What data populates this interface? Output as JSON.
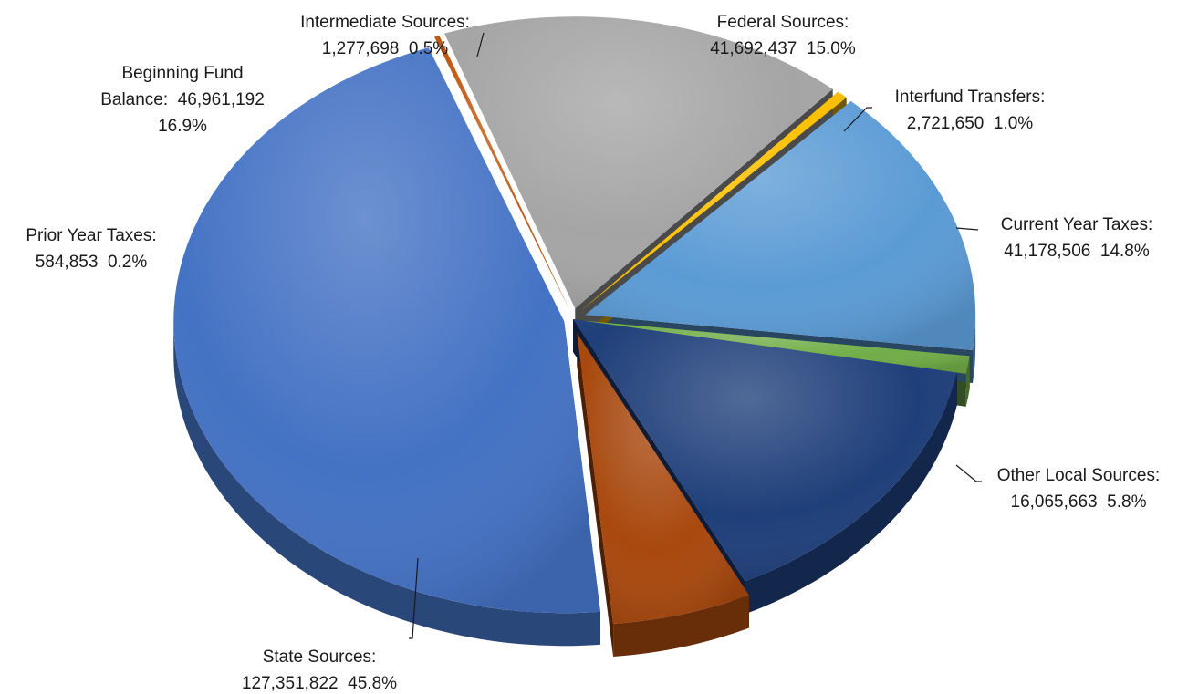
{
  "chart_data": {
    "type": "pie",
    "title": "",
    "legend": "none",
    "units": "dollars",
    "slices": [
      {
        "name": "Current Year Taxes:",
        "value": 41178506,
        "percent": "14.8%",
        "value_label": "41,178,506",
        "color": "#1f3f7a"
      },
      {
        "name": "Other Local Sources:",
        "value": 16065663,
        "percent": "5.8%",
        "value_label": "16,065,663",
        "color": "#a8480e"
      },
      {
        "name": "State Sources:",
        "value": 127351822,
        "percent": "45.8%",
        "value_label": "127,351,822",
        "color": "#4472c4"
      },
      {
        "name": "Prior Year Taxes:",
        "value": 584853,
        "percent": "0.2%",
        "value_label": "584,853",
        "color": "#c0560f"
      },
      {
        "name": "Beginning Fund Balance:",
        "value": 46961192,
        "percent": "16.9%",
        "value_label": "46,961,192",
        "color": "#a5a5a5"
      },
      {
        "name": "Intermediate Sources:",
        "value": 1277698,
        "percent": "0.5%",
        "value_label": "1,277,698",
        "color": "#ffc000"
      },
      {
        "name": "Federal Sources:",
        "value": 41692437,
        "percent": "15.0%",
        "value_label": "41,692,437",
        "color": "#5b9bd5"
      },
      {
        "name": "Interfund Transfers:",
        "value": 2721650,
        "percent": "1.0%",
        "value_label": "2,721,650",
        "color": "#70ad47"
      }
    ]
  }
}
